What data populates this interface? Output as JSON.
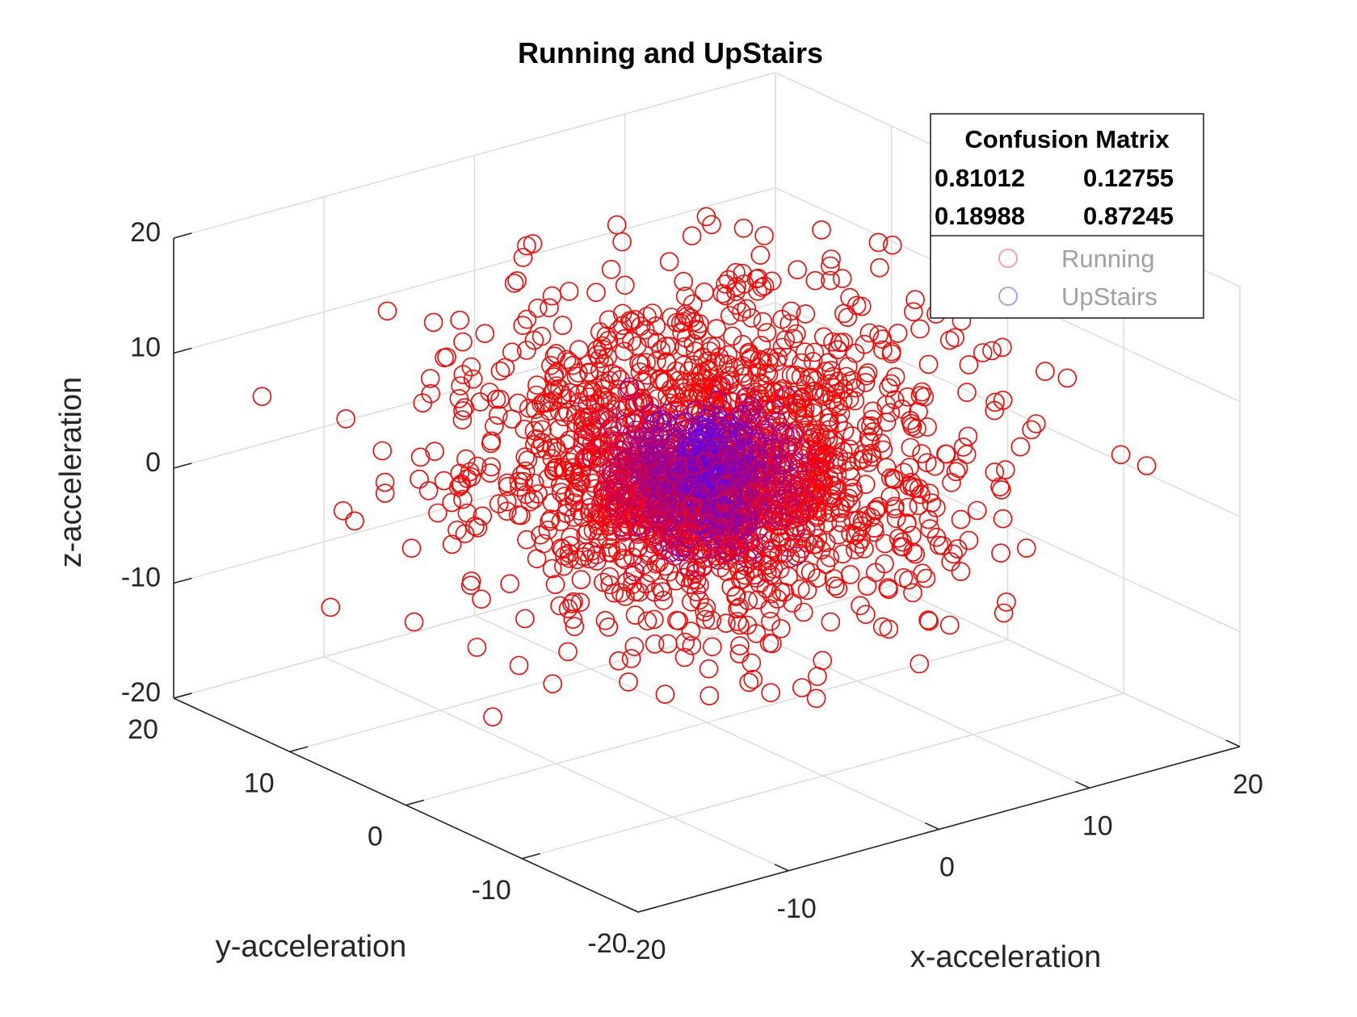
{
  "chart_data": {
    "type": "scatter",
    "projection": "3d",
    "title": "Running and UpStairs",
    "xlabel": "x-acceleration",
    "ylabel": "y-acceleration",
    "zlabel": "z-acceleration",
    "xlim": [
      -20,
      20
    ],
    "ylim": [
      -20,
      20
    ],
    "zlim": [
      -20,
      20
    ],
    "xticks": [
      "-20",
      "-10",
      "0",
      "10",
      "20"
    ],
    "yticks": [
      "-20",
      "-10",
      "0",
      "10",
      "20"
    ],
    "zticks": [
      "-20",
      "-10",
      "0",
      "10",
      "20"
    ],
    "grid": true,
    "marker": "open-circle",
    "series": [
      {
        "name": "Running",
        "color": "#ff0000",
        "spread": [
          6.5,
          6.5,
          6.5
        ],
        "center": [
          0,
          0,
          3
        ],
        "n_points": 1400
      },
      {
        "name": "UpStairs",
        "color": "#0000ff",
        "spread": [
          3,
          3,
          2.5
        ],
        "center": [
          -2,
          -2,
          2
        ],
        "n_points": 1000
      }
    ],
    "annotation": {
      "title": "Confusion Matrix",
      "rows": [
        [
          "0.81012",
          "0.12755"
        ],
        [
          "0.18988",
          "0.87245"
        ]
      ]
    },
    "legend_placement": "top-right"
  }
}
